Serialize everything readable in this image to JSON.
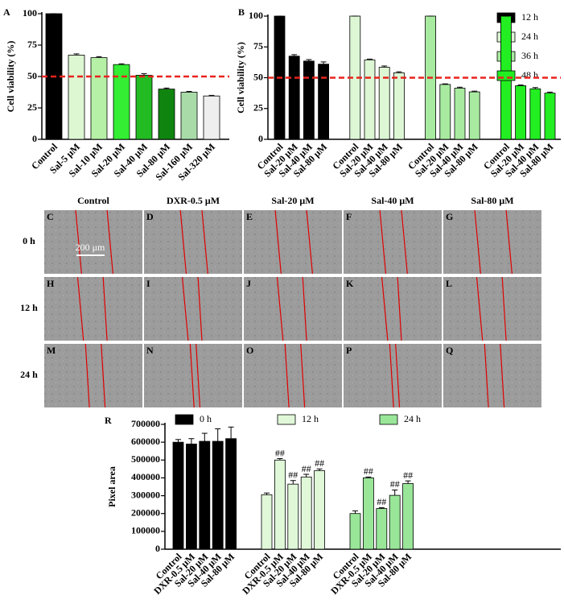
{
  "chart_data": [
    {
      "type": "bar",
      "panel": "A",
      "ylabel": "Cell viability (%)",
      "categories": [
        "Control",
        "Sal-5 μM",
        "Sal-10 μM",
        "Sal-20 μM",
        "Sal-40 μM",
        "Sal-80 μM",
        "Sal-160 μM",
        "Sal-320 μM"
      ],
      "values": [
        100,
        67,
        65,
        59.5,
        51,
        40,
        37.5,
        34.5
      ],
      "errors": [
        0,
        1,
        0.8,
        0.6,
        1.2,
        0.8,
        0.6,
        0.5
      ],
      "colors": [
        "#000000",
        "#dcf7d2",
        "#b5f0a6",
        "#33ee33",
        "#22bb22",
        "#0f850f",
        "#a9dba9",
        "#eeeeee"
      ],
      "ylim": [
        0,
        100
      ],
      "yticks": [
        0,
        25,
        50,
        75,
        100
      ],
      "reference_line": 50,
      "reference_color": "#e8231d"
    },
    {
      "type": "bar",
      "panel": "B",
      "ylabel": "Cell viability (%)",
      "categories": [
        "Control",
        "Sal-20 μM",
        "Sal-40 μM",
        "Sal-80 μM"
      ],
      "series": [
        {
          "name": "12 h",
          "color": "#000000",
          "values": [
            100,
            67.5,
            63.5,
            61
          ],
          "errors": [
            0,
            1.2,
            1.2,
            1.8
          ]
        },
        {
          "name": "24 h",
          "color": "#ddf7d4",
          "values": [
            100,
            64.5,
            58.5,
            54
          ],
          "errors": [
            0,
            0.6,
            1,
            0.8
          ]
        },
        {
          "name": "36 h",
          "color": "#a8eba0",
          "values": [
            100,
            44.5,
            41.5,
            38.5
          ],
          "errors": [
            0,
            0.5,
            0.8,
            0.6
          ]
        },
        {
          "name": "48 h",
          "color": "#22ee22",
          "values": [
            100,
            43.5,
            41,
            37.5
          ],
          "errors": [
            0,
            0.6,
            1,
            0.8
          ]
        }
      ],
      "ylim": [
        0,
        100
      ],
      "yticks": [
        0,
        25,
        50,
        75,
        100
      ],
      "reference_line": 50,
      "reference_color": "#e8231d"
    },
    {
      "type": "bar",
      "panel": "R",
      "ylabel": "Pixel area",
      "categories": [
        "Control",
        "DXR-0.5 μM",
        "Sal-20 μM",
        "Sal-40 μM",
        "Sal-80 μM"
      ],
      "series": [
        {
          "name": "0 h",
          "color": "#000000",
          "values": [
            600000,
            590000,
            605000,
            605000,
            620000
          ],
          "errors": [
            15000,
            30000,
            45000,
            70000,
            65000
          ]
        },
        {
          "name": "12 h",
          "color": "#e0f8d8",
          "values": [
            305000,
            500000,
            365000,
            405000,
            440000
          ],
          "errors": [
            10000,
            8000,
            20000,
            15000,
            10000
          ],
          "annotations": [
            null,
            "##",
            "##",
            "##",
            "##"
          ]
        },
        {
          "name": "24 h",
          "color": "#99e699",
          "values": [
            200000,
            400000,
            228000,
            302000,
            368000
          ],
          "errors": [
            15000,
            5000,
            5000,
            30000,
            15000
          ],
          "annotations": [
            null,
            "##",
            "##",
            "##",
            "##"
          ]
        }
      ],
      "ylim": [
        0,
        700000
      ],
      "yticks": [
        0,
        100000,
        200000,
        300000,
        400000,
        500000,
        600000,
        700000
      ]
    }
  ],
  "wound_healing": {
    "columns": [
      "Control",
      "DXR-0.5 μM",
      "Sal-20 μM",
      "Sal-40 μM",
      "Sal-80 μM"
    ],
    "rows": [
      "0 h",
      "12 h",
      "24 h"
    ],
    "panels": [
      [
        "C",
        "D",
        "E",
        "F",
        "G"
      ],
      [
        "H",
        "I",
        "J",
        "K",
        "L"
      ],
      [
        "M",
        "N",
        "O",
        "P",
        "Q"
      ]
    ],
    "scale_bar": "200 μm"
  }
}
